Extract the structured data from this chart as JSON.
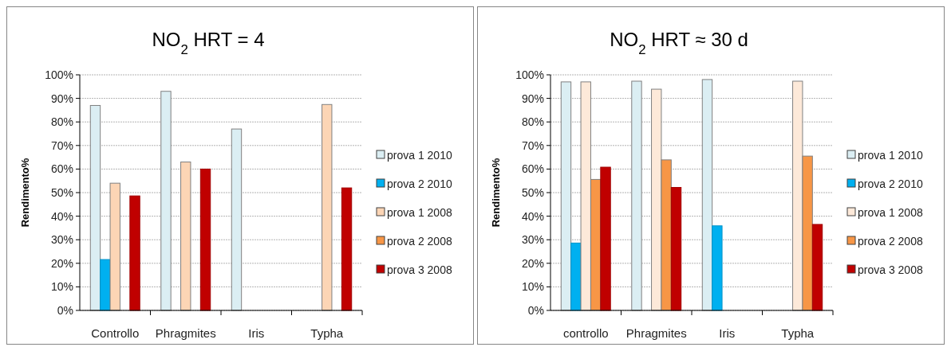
{
  "chart_data": [
    {
      "type": "bar",
      "title": "NO$_{2}$ HRT = 4",
      "ylabel": "Rendimento%",
      "categories": [
        "Controllo",
        "Phragmites",
        "Iris",
        "Typha"
      ],
      "ylim": [
        0,
        100
      ],
      "yticks": [
        {
          "value": 0,
          "label": "0%"
        },
        {
          "value": 10,
          "label": "10%"
        },
        {
          "value": 20,
          "label": "20%"
        },
        {
          "value": 30,
          "label": "30%"
        },
        {
          "value": 40,
          "label": "40%"
        },
        {
          "value": 50,
          "label": "50%"
        },
        {
          "value": 60,
          "label": "60%"
        },
        {
          "value": 70,
          "label": "70%"
        },
        {
          "value": 80,
          "label": "80%"
        },
        {
          "value": 90,
          "label": "90%"
        },
        {
          "value": 100,
          "label": "100%"
        }
      ],
      "grid": "y",
      "legend": "right",
      "series": [
        {
          "name": "prova 1 2010",
          "color": "#dbeef3",
          "values": [
            87,
            93,
            77,
            null
          ]
        },
        {
          "name": "prova 2 2010",
          "color": "#00b0f0",
          "values": [
            21.6,
            null,
            0,
            null
          ]
        },
        {
          "name": "prova 1 2008",
          "color": "#fcd5b5",
          "values": [
            54,
            63,
            null,
            87.4
          ]
        },
        {
          "name": "prova 2 2008",
          "color": "#f79646",
          "values": [
            0,
            0,
            null,
            0
          ]
        },
        {
          "name": "prova 3 2008",
          "color": "#c00000",
          "values": [
            48.6,
            60,
            null,
            52
          ]
        }
      ]
    },
    {
      "type": "bar",
      "title": "NO$_{2}$  HRT ≈ 30 d",
      "ylabel": "Rendimento%",
      "categories": [
        "controllo",
        "Phragmites",
        "Iris",
        "Typha"
      ],
      "ylim": [
        0,
        100
      ],
      "yticks": [
        {
          "value": 0,
          "label": "0%"
        },
        {
          "value": 10,
          "label": "10%"
        },
        {
          "value": 20,
          "label": "20%"
        },
        {
          "value": 30,
          "label": "30%"
        },
        {
          "value": 40,
          "label": "40%"
        },
        {
          "value": 50,
          "label": "50%"
        },
        {
          "value": 60,
          "label": "60%"
        },
        {
          "value": 70,
          "label": "70%"
        },
        {
          "value": 80,
          "label": "80%"
        },
        {
          "value": 90,
          "label": "90%"
        },
        {
          "value": 100,
          "label": "100%"
        }
      ],
      "grid": "y",
      "legend": "right",
      "series": [
        {
          "name": "prova 1 2010",
          "color": "#dbeef3",
          "values": [
            97,
            97.3,
            98,
            null
          ]
        },
        {
          "name": "prova 2 2010",
          "color": "#00b0f0",
          "values": [
            28.6,
            null,
            35.9,
            null
          ]
        },
        {
          "name": "prova 1 2008",
          "color": "#fde9d9",
          "values": [
            97,
            93.9,
            null,
            97.3
          ]
        },
        {
          "name": "prova 2 2008",
          "color": "#f79646",
          "values": [
            55.6,
            63.9,
            null,
            65.5
          ]
        },
        {
          "name": "prova 3 2008",
          "color": "#c00000",
          "values": [
            60.8,
            52.2,
            null,
            36.5
          ]
        }
      ]
    }
  ]
}
